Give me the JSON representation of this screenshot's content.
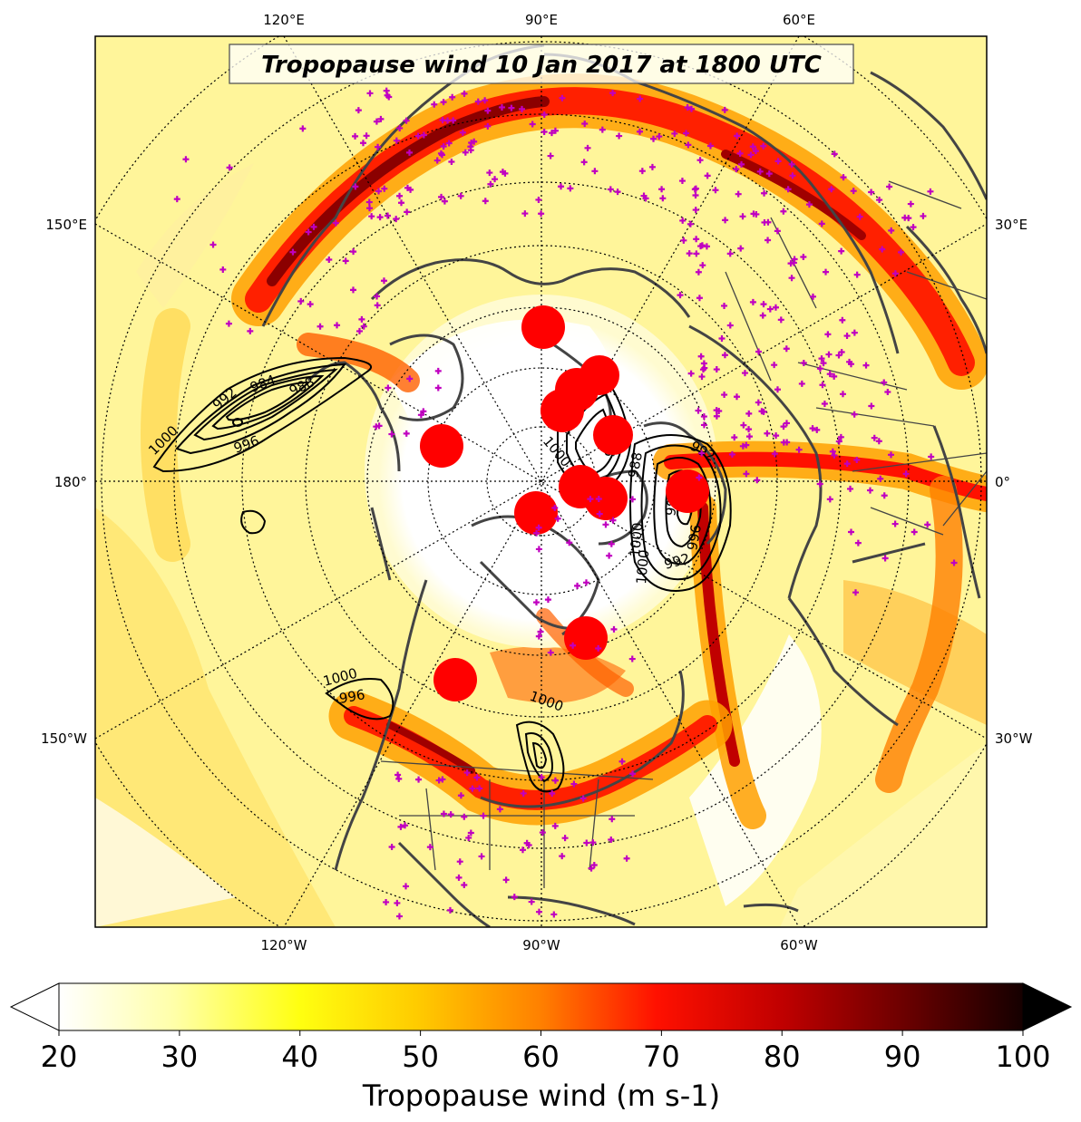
{
  "title": "Tropopause wind 10 Jan 2017 at 1800 UTC",
  "lon_labels": {
    "top": [
      "120°E",
      "90°E",
      "60°E"
    ],
    "left": [
      "150°E",
      "180°",
      "150°W"
    ],
    "right": [
      "30°E",
      "0°",
      "30°W"
    ],
    "bottom": [
      "120°W",
      "90°W",
      "60°W"
    ]
  },
  "colorbar": {
    "label": "Tropopause wind (m s-1)",
    "min": 20,
    "max": 100,
    "tick_labels": [
      "20",
      "30",
      "40",
      "50",
      "60",
      "70",
      "80",
      "90",
      "100"
    ],
    "extend": "both",
    "colormap": "hot_r"
  },
  "contour_labels": [
    "984",
    "988",
    "992",
    "996",
    "1000",
    "1000",
    "996",
    "1000",
    "988",
    "992",
    "996",
    "1000",
    "988",
    "992",
    "1000",
    "996",
    "1000"
  ],
  "colors": {
    "jet_core": "#8b0000",
    "jet_mid": "#ff2000",
    "jet_edge": "#ffa000",
    "jet_outer": "#ffff40",
    "coast": "#444444",
    "station_marker": "#c000c0",
    "feature_circle": "#ff0000",
    "contour": "#000000",
    "grid": "#000000"
  },
  "markers": {
    "station_symbol": "+",
    "feature_symbol": "circle"
  }
}
